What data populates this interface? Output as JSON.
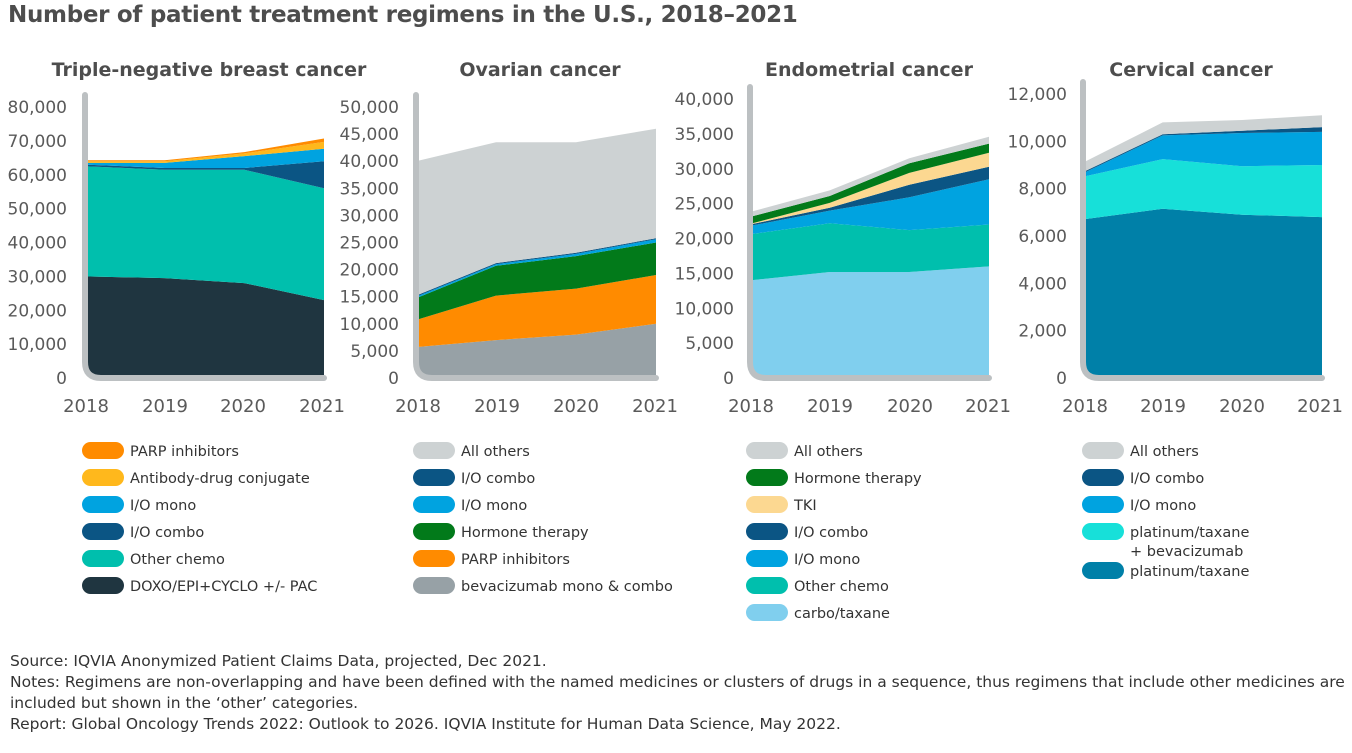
{
  "title": "Number of patient treatment regimens in the U.S., 2018–2021",
  "chart_data": [
    {
      "type": "area",
      "stacked": true,
      "title": "Triple-negative breast cancer",
      "categories": [
        "2018",
        "2019",
        "2020",
        "2021"
      ],
      "ylim": [
        0,
        80000
      ],
      "yticks": [
        0,
        10000,
        20000,
        30000,
        40000,
        50000,
        60000,
        70000,
        80000
      ],
      "ytick_labels": [
        "0",
        "10,000",
        "20,000",
        "30,000",
        "40,000",
        "50,000",
        "60,000",
        "70,000",
        "80,000"
      ],
      "series": [
        {
          "name": "DOXO/EPI+CYCLO +/- PAC",
          "color": "#1f3540",
          "values": [
            30000,
            29500,
            28000,
            23000
          ]
        },
        {
          "name": "Other chemo",
          "color": "#00bfad",
          "values": [
            32500,
            32000,
            33500,
            33000
          ]
        },
        {
          "name": "I/O combo",
          "color": "#0b5584",
          "values": [
            500,
            500,
            500,
            8000
          ]
        },
        {
          "name": "I/O mono",
          "color": "#00a3e0",
          "values": [
            500,
            1500,
            3500,
            3700
          ]
        },
        {
          "name": "Antibody-drug conjugate",
          "color": "#ffb81c",
          "values": [
            500,
            500,
            800,
            2000
          ]
        },
        {
          "name": "PARP inhibitors",
          "color": "#ff8b00",
          "values": [
            300,
            300,
            400,
            1000
          ]
        }
      ],
      "legend": [
        "PARP inhibitors",
        "Antibody-drug conjugate",
        "I/O mono",
        "I/O combo",
        "Other chemo",
        "DOXO/EPI+CYCLO +/- PAC"
      ]
    },
    {
      "type": "area",
      "stacked": true,
      "title": "Ovarian cancer",
      "categories": [
        "2018",
        "2019",
        "2020",
        "2021"
      ],
      "ylim": [
        0,
        50000
      ],
      "yticks": [
        0,
        5000,
        10000,
        15000,
        20000,
        25000,
        30000,
        35000,
        40000,
        45000,
        50000
      ],
      "ytick_labels": [
        "0",
        "5,000",
        "10,000",
        "15,000",
        "20,000",
        "25,000",
        "30,000",
        "35,000",
        "40,000",
        "45,000",
        "50,000"
      ],
      "series": [
        {
          "name": "bevacizumab mono & combo",
          "color": "#97a1a6",
          "values": [
            5700,
            7000,
            8000,
            10000
          ]
        },
        {
          "name": "PARP inhibitors",
          "color": "#ff8b00",
          "values": [
            5000,
            8200,
            8500,
            9000
          ]
        },
        {
          "name": "Hormone therapy",
          "color": "#027a1a",
          "values": [
            4000,
            5500,
            6000,
            6000
          ]
        },
        {
          "name": "I/O mono",
          "color": "#00a3e0",
          "values": [
            300,
            300,
            400,
            600
          ]
        },
        {
          "name": "I/O combo",
          "color": "#0b5584",
          "values": [
            200,
            200,
            200,
            200
          ]
        },
        {
          "name": "All others",
          "color": "#cdd2d3",
          "values": [
            24800,
            22300,
            20400,
            20200
          ]
        }
      ],
      "legend": [
        "All others",
        "I/O combo",
        "I/O mono",
        "Hormone therapy",
        "PARP inhibitors",
        "bevacizumab mono & combo"
      ]
    },
    {
      "type": "area",
      "stacked": true,
      "title": "Endometrial cancer",
      "categories": [
        "2018",
        "2019",
        "2020",
        "2021"
      ],
      "ylim": [
        0,
        40000
      ],
      "yticks": [
        0,
        5000,
        10000,
        15000,
        20000,
        25000,
        30000,
        35000,
        40000
      ],
      "ytick_labels": [
        "0",
        "5,000",
        "10,000",
        "15,000",
        "20,000",
        "25,000",
        "30,000",
        "35,000",
        "40,000"
      ],
      "series": [
        {
          "name": "carbo/taxane",
          "color": "#80cfee",
          "values": [
            14000,
            15200,
            15200,
            16000
          ]
        },
        {
          "name": "Other chemo",
          "color": "#00bfad",
          "values": [
            6600,
            7000,
            6000,
            6000
          ]
        },
        {
          "name": "I/O mono",
          "color": "#00a3e0",
          "values": [
            1200,
            1800,
            4700,
            6500
          ]
        },
        {
          "name": "I/O combo",
          "color": "#0b5584",
          "values": [
            200,
            400,
            1800,
            1800
          ]
        },
        {
          "name": "TKI",
          "color": "#fcd891",
          "values": [
            100,
            700,
            1700,
            2000
          ]
        },
        {
          "name": "Hormone therapy",
          "color": "#027a1a",
          "values": [
            1000,
            1000,
            1400,
            1300
          ]
        },
        {
          "name": "All others",
          "color": "#cdd2d3",
          "values": [
            700,
            800,
            700,
            1000
          ]
        }
      ],
      "legend": [
        "All others",
        "Hormone therapy",
        "TKI",
        "I/O combo",
        "I/O mono",
        "Other chemo",
        "carbo/taxane"
      ]
    },
    {
      "type": "area",
      "stacked": true,
      "title": "Cervical cancer",
      "categories": [
        "2018",
        "2019",
        "2020",
        "2021"
      ],
      "ylim": [
        0,
        12000
      ],
      "yticks": [
        0,
        2000,
        4000,
        6000,
        8000,
        10000,
        12000
      ],
      "ytick_labels": [
        "0",
        "2,000",
        "4,000",
        "6,000",
        "8,000",
        "10,000",
        "12,000"
      ],
      "series": [
        {
          "name": "platinum/taxane",
          "color": "#0080a8",
          "values": [
            6700,
            7150,
            6900,
            6800
          ]
        },
        {
          "name": "platinum/taxane + bevacizumab",
          "color": "#17e0d9",
          "values": [
            1800,
            2100,
            2050,
            2200
          ]
        },
        {
          "name": "I/O mono",
          "color": "#00a3e0",
          "values": [
            150,
            1000,
            1400,
            1400
          ]
        },
        {
          "name": "I/O combo",
          "color": "#0b5584",
          "values": [
            50,
            50,
            100,
            200
          ]
        },
        {
          "name": "All others",
          "color": "#cdd2d3",
          "values": [
            400,
            500,
            450,
            500
          ]
        }
      ],
      "legend": [
        "All others",
        "I/O combo",
        "I/O mono",
        "platinum/taxane\n+ bevacizumab",
        "platinum/taxane"
      ]
    }
  ],
  "footnotes": {
    "source": "Source: IQVIA Anonymized Patient Claims Data, projected, Dec 2021.",
    "notes": "Notes: Regimens are non-overlapping and have been defined with the named medicines or clusters of drugs in a sequence, thus regimens that include other medicines are included but shown in the ‘other’ categories.",
    "report": "Report: Global Oncology Trends 2022: Outlook to 2026. IQVIA Institute for Human Data Science, May 2022."
  }
}
